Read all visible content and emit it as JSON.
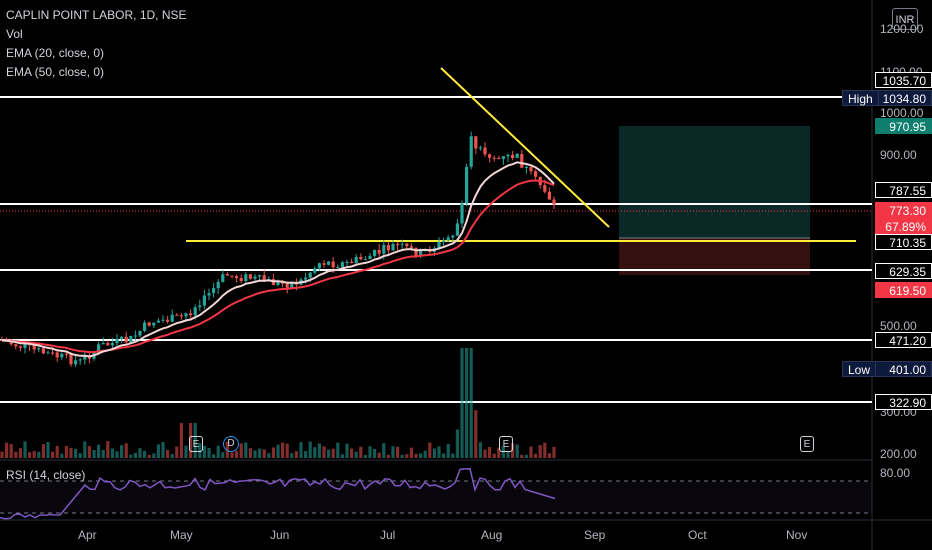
{
  "legend": {
    "title": "CAPLIN POINT LABOR, 1D, NSE",
    "vol": "Vol",
    "ema20": "EMA (20, close, 0)",
    "ema50": "EMA (50, close, 0)",
    "rsi": "RSI (14, close)"
  },
  "currency": "INR",
  "price_axis": [
    "1200.00",
    "1100.00",
    "1000.00",
    "900.00",
    "500.00",
    "300.00",
    "200.00"
  ],
  "rsi_axis": [
    "80.00"
  ],
  "time_axis": [
    "Apr",
    "May",
    "Jun",
    "Jul",
    "Aug",
    "Sep",
    "Oct",
    "Nov"
  ],
  "price_tags": [
    {
      "value": "1035.70",
      "bg": "#000000",
      "border": "#ffffff",
      "color": "#ffffff"
    },
    {
      "value": "1034.80",
      "bg": "#0e1a3b",
      "border": "#2a3554",
      "color": "#ffffff",
      "side": "High"
    },
    {
      "value": "970.95",
      "bg": "#0d7e6e",
      "border": "#0d7e6e",
      "color": "#ffffff"
    },
    {
      "value": "787.55",
      "bg": "#000000",
      "border": "#ffffff",
      "color": "#ffffff"
    },
    {
      "value": "773.30",
      "bg": "#f23645",
      "border": "#f23645",
      "color": "#ffffff"
    },
    {
      "value": "67.89%",
      "bg": "#f23645",
      "border": "#f23645",
      "color": "#ffffff"
    },
    {
      "value": "710.35",
      "bg": "#000000",
      "border": "#ffffff",
      "color": "#ffffff"
    },
    {
      "value": "629.35",
      "bg": "#000000",
      "border": "#ffffff",
      "color": "#ffffff"
    },
    {
      "value": "619.50",
      "bg": "#f23645",
      "border": "#f23645",
      "color": "#ffffff"
    },
    {
      "value": "471.20",
      "bg": "#000000",
      "border": "#ffffff",
      "color": "#ffffff"
    },
    {
      "value": "401.00",
      "bg": "#0e1a3b",
      "border": "#2a3554",
      "color": "#ffffff",
      "side": "Low"
    },
    {
      "value": "322.90",
      "bg": "#000000",
      "border": "#ffffff",
      "color": "#ffffff"
    }
  ],
  "events": [
    "E",
    "D",
    "E",
    "E"
  ],
  "colors": {
    "up": "#26a69a",
    "down": "#ef5350",
    "ema20": "#f3d5d5",
    "ema50": "#f23645",
    "trend": "#ffeb3b",
    "rsi": "#7e57c2"
  }
}
